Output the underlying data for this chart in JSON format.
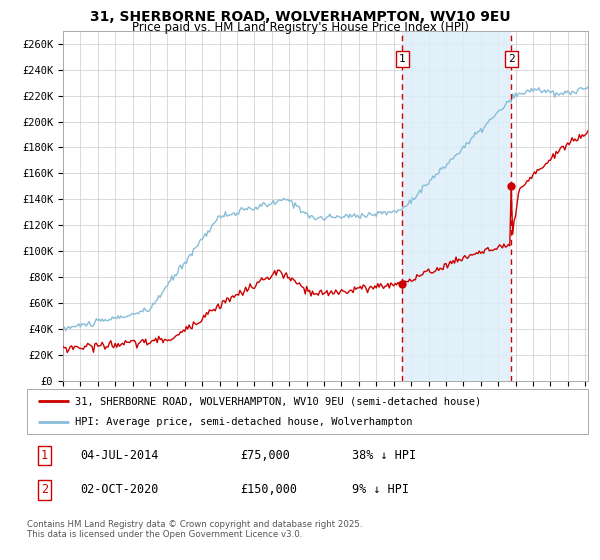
{
  "title": "31, SHERBORNE ROAD, WOLVERHAMPTON, WV10 9EU",
  "subtitle": "Price paid vs. HM Land Registry's House Price Index (HPI)",
  "title_fontsize": 10,
  "subtitle_fontsize": 8.5,
  "ylabel_ticks": [
    "£0",
    "£20K",
    "£40K",
    "£60K",
    "£80K",
    "£100K",
    "£120K",
    "£140K",
    "£160K",
    "£180K",
    "£200K",
    "£220K",
    "£240K",
    "£260K"
  ],
  "ylim": [
    0,
    270000
  ],
  "ytick_vals": [
    0,
    20000,
    40000,
    60000,
    80000,
    100000,
    120000,
    140000,
    160000,
    180000,
    200000,
    220000,
    240000,
    260000
  ],
  "line1_color": "#cc0000",
  "line2_color": "#89bdd8",
  "vline_color": "#cc0000",
  "shade_color": "#ddeef8",
  "annotation1_label": "1",
  "annotation2_label": "2",
  "sale1_date": "04-JUL-2014",
  "sale1_price": "£75,000",
  "sale1_hpi": "38% ↓ HPI",
  "sale2_date": "02-OCT-2020",
  "sale2_price": "£150,000",
  "sale2_hpi": "9% ↓ HPI",
  "legend1": "31, SHERBORNE ROAD, WOLVERHAMPTON, WV10 9EU (semi-detached house)",
  "legend2": "HPI: Average price, semi-detached house, Wolverhampton",
  "footer": "Contains HM Land Registry data © Crown copyright and database right 2025.\nThis data is licensed under the Open Government Licence v3.0.",
  "background_color": "#ffffff",
  "plot_bg_color": "#ffffff",
  "grid_color": "#cccccc"
}
